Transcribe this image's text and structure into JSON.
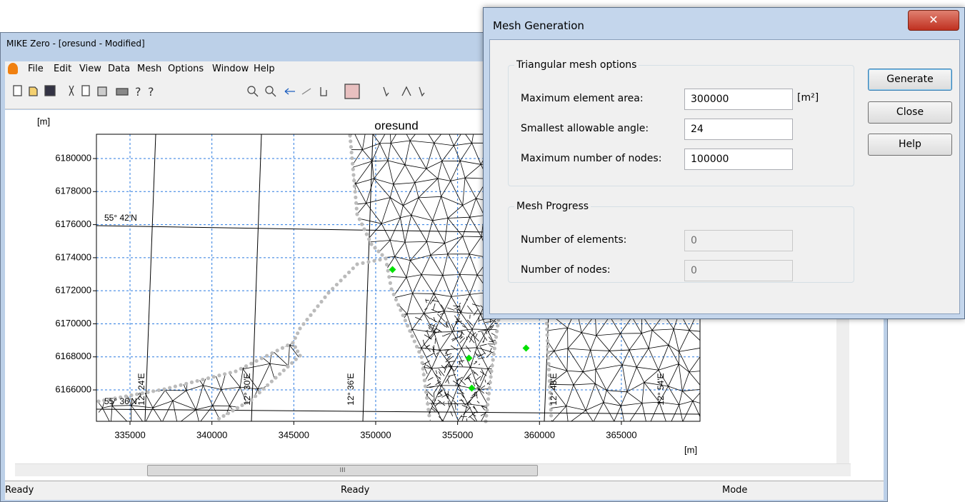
{
  "window": {
    "title": "MIKE Zero - [oresund - Modified]",
    "menu": [
      "File",
      "Edit",
      "View",
      "Data",
      "Mesh",
      "Options",
      "Window",
      "Help"
    ],
    "status": {
      "left": "Ready",
      "center": "Ready",
      "right": "Mode"
    },
    "scrollbar_grip": "III"
  },
  "plot": {
    "title": "oresund",
    "y_unit": "[m]",
    "x_unit": "[m]",
    "xlim": [
      332950,
      369800
    ],
    "ylim": [
      6164100,
      6181470
    ],
    "xticks": [
      335000,
      340000,
      345000,
      350000,
      355000,
      360000,
      365000
    ],
    "yticks": [
      6166000,
      6168000,
      6170000,
      6172000,
      6174000,
      6176000,
      6178000,
      6180000
    ],
    "grid": true,
    "annotations": [
      "55° 42'N",
      "55° 36'N",
      "12° 24'E",
      "12° 30'E",
      "12° 36'E",
      "12° 48'E",
      "12° 54'E"
    ]
  },
  "dialog": {
    "title": "Mesh Generation",
    "mesh_options": {
      "title": "Triangular mesh options",
      "fields": [
        {
          "label": "Maximum element area:",
          "value": "300000",
          "unit": "[m²]"
        },
        {
          "label": "Smallest allowable angle:",
          "value": "24"
        },
        {
          "label": "Maximum number of nodes:",
          "value": "100000"
        }
      ]
    },
    "progress": {
      "title": "Mesh Progress",
      "fields": [
        {
          "label": "Number of elements:",
          "value": "0"
        },
        {
          "label": "Number of nodes:",
          "value": "0"
        }
      ]
    },
    "buttons": [
      "Generate",
      "Close",
      "Help"
    ]
  }
}
